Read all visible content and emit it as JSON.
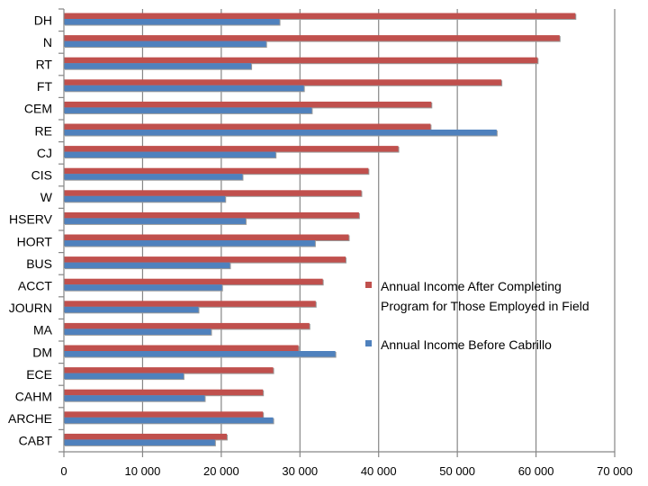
{
  "chart_data": {
    "type": "bar",
    "orientation": "horizontal",
    "categories": [
      "DH",
      "N",
      "RT",
      "FT",
      "CEM",
      "RE",
      "CJ",
      "CIS",
      "W",
      "HSERV",
      "HORT",
      "BUS",
      "ACCT",
      "JOURN",
      "MA",
      "DM",
      "ECE",
      "CAHM",
      "ARCHE",
      "CABT"
    ],
    "series": [
      {
        "name": "Annual Income After Completing Program for Those Employed in Field",
        "color": "#C0504D",
        "values": [
          65000,
          63000,
          60200,
          55600,
          46700,
          46600,
          42500,
          38700,
          37800,
          37500,
          36200,
          35800,
          32900,
          32000,
          31200,
          29800,
          26600,
          25300,
          25300,
          20700
        ]
      },
      {
        "name": "Annual Income Before Cabrillo",
        "color": "#4F81BD",
        "values": [
          27400,
          25700,
          23800,
          30500,
          31500,
          55000,
          26900,
          22700,
          20500,
          23100,
          31900,
          21100,
          20100,
          17100,
          18700,
          34500,
          15200,
          17900,
          26600,
          19200
        ]
      }
    ],
    "legend_lines": [
      [
        "Annual Income After Completing",
        "Program for Those Employed in Field"
      ],
      [
        "Annual Income Before Cabrillo"
      ]
    ],
    "xlim": [
      0,
      70000
    ],
    "xticks": [
      0,
      10000,
      20000,
      30000,
      40000,
      50000,
      60000,
      70000
    ],
    "xtick_labels": [
      "0",
      "10 000",
      "20 000",
      "30 000",
      "40 000",
      "50 000",
      "60 000",
      "70 000"
    ],
    "grid": "vertical",
    "legend_position": "right"
  }
}
